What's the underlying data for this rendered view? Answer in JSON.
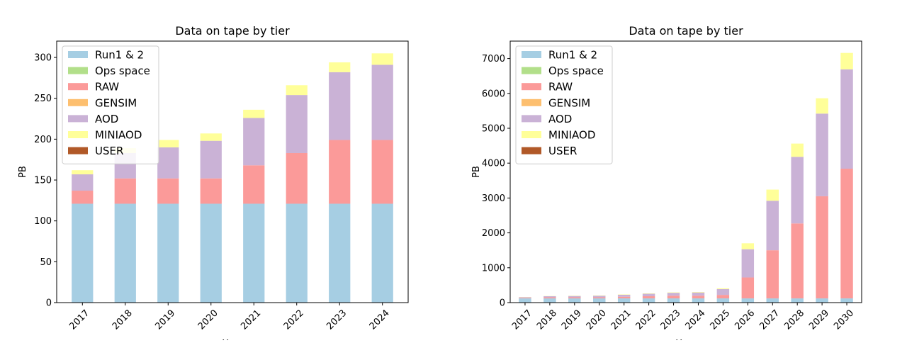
{
  "chart_data": [
    {
      "type": "bar",
      "stacked": true,
      "title": "Data on tape by tier",
      "xlabel": "Year",
      "ylabel": "PB",
      "ylim": [
        0,
        320
      ],
      "yticks": [
        0,
        50,
        100,
        150,
        200,
        250,
        300
      ],
      "legend": "top-left",
      "categories": [
        "2017",
        "2018",
        "2019",
        "2020",
        "2021",
        "2022",
        "2023",
        "2024"
      ],
      "series": [
        {
          "name": "Run1 & 2",
          "color": "#a6cee3",
          "values": [
            121,
            121,
            121,
            121,
            121,
            121,
            121,
            121
          ]
        },
        {
          "name": "Ops space",
          "color": "#b2df8a",
          "values": [
            0,
            0,
            0,
            0,
            0,
            0,
            0,
            0
          ]
        },
        {
          "name": "RAW",
          "color": "#fb9a99",
          "values": [
            16,
            31,
            31,
            31,
            47,
            62,
            78,
            78
          ]
        },
        {
          "name": "GENSIM",
          "color": "#fdbf6f",
          "values": [
            0,
            0,
            0,
            0,
            0,
            0,
            0,
            0
          ]
        },
        {
          "name": "AOD",
          "color": "#cab2d6",
          "values": [
            20,
            31,
            38,
            46,
            58,
            71,
            83,
            92
          ]
        },
        {
          "name": "MINIAOD",
          "color": "#ffff99",
          "values": [
            5,
            6,
            9,
            9,
            10,
            12,
            12,
            14
          ]
        },
        {
          "name": "USER",
          "color": "#b15928",
          "values": [
            0,
            0,
            0,
            0,
            0,
            0,
            0,
            0
          ]
        }
      ]
    },
    {
      "type": "bar",
      "stacked": true,
      "title": "Data on tape by tier",
      "xlabel": "Year",
      "ylabel": "PB",
      "ylim": [
        0,
        7500
      ],
      "yticks": [
        0,
        1000,
        2000,
        3000,
        4000,
        5000,
        6000,
        7000
      ],
      "legend": "top-left",
      "categories": [
        "2017",
        "2018",
        "2019",
        "2020",
        "2021",
        "2022",
        "2023",
        "2024",
        "2025",
        "2026",
        "2027",
        "2028",
        "2029",
        "2030"
      ],
      "series": [
        {
          "name": "Run1 & 2",
          "color": "#a6cee3",
          "values": [
            121,
            121,
            121,
            121,
            121,
            121,
            121,
            121,
            121,
            121,
            121,
            121,
            121,
            121
          ]
        },
        {
          "name": "Ops space",
          "color": "#b2df8a",
          "values": [
            0,
            0,
            0,
            0,
            0,
            0,
            0,
            0,
            0,
            0,
            0,
            0,
            0,
            0
          ]
        },
        {
          "name": "RAW",
          "color": "#fb9a99",
          "values": [
            16,
            31,
            31,
            31,
            47,
            62,
            78,
            78,
            100,
            600,
            1380,
            2150,
            2930,
            3720
          ]
        },
        {
          "name": "GENSIM",
          "color": "#fdbf6f",
          "values": [
            0,
            0,
            0,
            0,
            0,
            0,
            0,
            0,
            0,
            0,
            0,
            0,
            0,
            0
          ]
        },
        {
          "name": "AOD",
          "color": "#cab2d6",
          "values": [
            20,
            31,
            38,
            46,
            58,
            71,
            83,
            92,
            165,
            810,
            1420,
            1910,
            2370,
            2850
          ]
        },
        {
          "name": "MINIAOD",
          "color": "#ffff99",
          "values": [
            5,
            6,
            9,
            9,
            10,
            12,
            12,
            14,
            24,
            170,
            320,
            380,
            440,
            470
          ]
        },
        {
          "name": "USER",
          "color": "#b15928",
          "values": [
            0,
            0,
            0,
            0,
            0,
            0,
            0,
            0,
            0,
            0,
            0,
            0,
            0,
            0
          ]
        }
      ]
    }
  ]
}
